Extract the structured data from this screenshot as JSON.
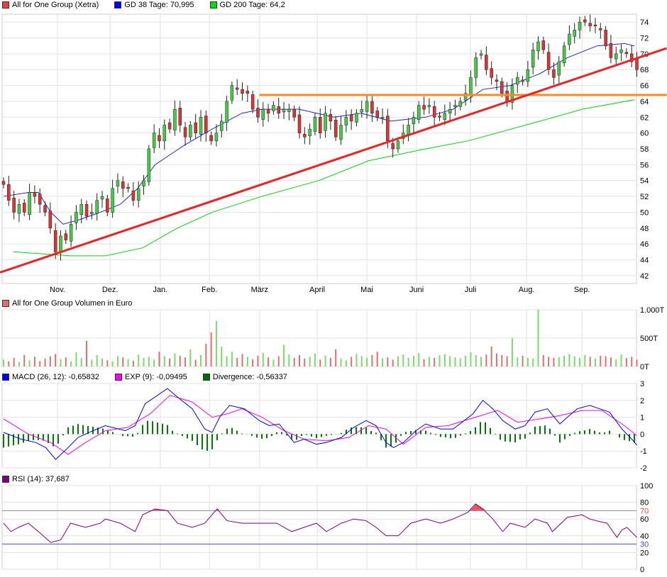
{
  "legend_main": [
    {
      "label": "All for One Group (Xetra)",
      "color": "#e84040"
    },
    {
      "label": "GD 38 Tage: 70,995",
      "color": "#0000ff"
    },
    {
      "label": "GD 200 Tage: 64,2",
      "color": "#00e000"
    }
  ],
  "legend_volume": [
    {
      "label": "All for One Group Volumen in Euro",
      "color": "#e07070"
    }
  ],
  "legend_macd": [
    {
      "label": "MACD (26, 12): -0,65832",
      "color": "#0000ff"
    },
    {
      "label": "EXP (9): -0,09495",
      "color": "#ff00ff"
    },
    {
      "label": "Divergence: -0,56337",
      "color": "#007000"
    }
  ],
  "legend_rsi": [
    {
      "label": "RSI (14): 37,687",
      "color": "#800080"
    }
  ],
  "chart_data": [
    {
      "type": "candlestick",
      "name": "price",
      "ylim": [
        41,
        75
      ],
      "yticks": [
        42,
        44,
        46,
        48,
        50,
        52,
        54,
        56,
        58,
        60,
        62,
        64,
        66,
        68,
        70,
        72,
        74
      ],
      "day_range": [
        0,
        255
      ],
      "months": [
        {
          "label": "Nov.",
          "day": 21.7
        },
        {
          "label": "Dez.",
          "day": 42.9
        },
        {
          "label": "Jan.",
          "day": 63.1
        },
        {
          "label": "Feb.",
          "day": 82.9
        },
        {
          "label": "März",
          "day": 103.1
        },
        {
          "label": "April",
          "day": 126.3
        },
        {
          "label": "Mai",
          "day": 146.3
        },
        {
          "label": "Juni",
          "day": 166.3
        },
        {
          "label": "Juli",
          "day": 188
        },
        {
          "label": "Aug.",
          "day": 210.6
        },
        {
          "label": "Sep.",
          "day": 232.9
        }
      ],
      "closes": [
        53.5,
        51.5,
        50,
        51,
        50,
        52.5,
        52,
        51,
        50,
        48,
        45,
        47,
        46.5,
        48.5,
        50,
        51,
        49.5,
        50,
        51.5,
        52,
        50,
        53,
        54,
        53,
        53,
        51.5,
        53,
        54,
        58,
        60,
        59,
        61,
        60.5,
        63,
        61,
        59.5,
        61,
        60,
        62,
        60,
        59,
        60,
        61.5,
        64,
        66,
        65.5,
        65,
        65,
        63,
        62,
        63,
        62.5,
        63.5,
        62.5,
        63,
        63,
        62,
        60,
        59.5,
        60.5,
        62,
        60,
        62.5,
        61.5,
        59.5,
        61,
        62,
        61.5,
        62.5,
        63,
        64,
        62.5,
        62,
        62,
        59,
        58,
        59,
        60,
        61,
        62,
        63.5,
        63,
        63.5,
        62,
        62,
        62.5,
        63,
        63.5,
        64,
        65,
        67,
        69.5,
        70,
        68,
        67,
        66.5,
        65,
        64,
        66,
        67,
        66.5,
        68,
        70.5,
        71.5,
        70.5,
        68,
        67,
        69,
        71,
        72.5,
        73,
        74,
        74,
        73.5,
        73.5,
        73,
        71,
        69.5,
        70,
        70.5,
        70,
        69,
        68
      ],
      "gd38": [
        [
          0,
          52
        ],
        [
          10,
          52.5
        ],
        [
          14,
          52.5
        ],
        [
          19,
          50
        ],
        [
          24,
          48.5
        ],
        [
          30,
          49
        ],
        [
          39,
          50
        ],
        [
          47,
          51
        ],
        [
          54,
          53
        ],
        [
          61,
          56
        ],
        [
          73,
          58.5
        ],
        [
          84,
          60.5
        ],
        [
          96,
          62.5
        ],
        [
          104,
          63
        ],
        [
          119,
          63
        ],
        [
          133,
          62
        ],
        [
          144,
          62.5
        ],
        [
          156,
          61.5
        ],
        [
          170,
          62
        ],
        [
          181,
          63
        ],
        [
          193,
          65.5
        ],
        [
          204,
          66
        ],
        [
          216,
          67.5
        ],
        [
          227,
          69.5
        ],
        [
          239,
          71
        ],
        [
          250,
          71.3
        ],
        [
          254,
          71
        ]
      ],
      "gd200": [
        [
          4,
          45
        ],
        [
          27,
          44.5
        ],
        [
          41,
          44.5
        ],
        [
          56,
          45.5
        ],
        [
          70,
          48
        ],
        [
          84,
          50
        ],
        [
          104,
          52
        ],
        [
          127,
          54
        ],
        [
          147,
          56.5
        ],
        [
          170,
          58
        ],
        [
          187,
          59
        ],
        [
          216,
          61.5
        ],
        [
          233,
          63
        ],
        [
          254,
          64.2
        ]
      ],
      "trendline": [
        [
          -1.4,
          42.4
        ],
        [
          267,
          70.7
        ]
      ],
      "resistance": [
        [
          103,
          64.8
        ],
        [
          267,
          64.8
        ]
      ]
    },
    {
      "type": "bar",
      "name": "volume",
      "ylim": [
        0,
        1000
      ],
      "yticks": [
        {
          "v": 0,
          "label": "0T"
        },
        {
          "v": 500,
          "label": "500T"
        },
        {
          "v": 1000,
          "label": "1.000T"
        }
      ],
      "values": [
        120,
        90,
        150,
        80,
        200,
        110,
        170,
        95,
        140,
        180,
        220,
        130,
        160,
        90,
        250,
        150,
        450,
        120,
        200,
        140,
        110,
        90,
        180,
        160,
        130,
        100,
        210,
        150,
        170,
        120,
        260,
        180,
        140,
        230,
        190,
        160,
        300,
        120,
        200,
        400,
        600,
        800,
        350,
        180,
        260,
        150,
        220,
        170,
        130,
        190,
        240,
        160,
        120,
        180,
        380,
        210,
        150,
        200,
        140,
        170,
        230,
        120,
        190,
        150,
        300,
        140,
        110,
        170,
        220,
        180,
        150,
        200,
        260,
        140,
        160,
        120,
        180,
        210,
        150,
        190,
        240,
        130,
        170,
        150,
        200,
        220,
        180,
        160,
        140,
        190,
        250,
        200,
        170,
        210,
        350,
        230,
        200,
        180,
        500,
        160,
        190,
        150,
        140,
        1000,
        200,
        170,
        150,
        160,
        190,
        220,
        180,
        150,
        200,
        170,
        140,
        190,
        180,
        160,
        130,
        210,
        150,
        170,
        120
      ]
    },
    {
      "type": "line",
      "name": "macd",
      "ylim": [
        -2,
        3
      ],
      "yticks": [
        -2,
        -1,
        0,
        1,
        2,
        3
      ],
      "macd": [
        [
          0,
          0.1
        ],
        [
          7,
          -0.3
        ],
        [
          13,
          -0.5
        ],
        [
          17,
          -0.8
        ],
        [
          21,
          -1.5
        ],
        [
          26,
          -0.8
        ],
        [
          30,
          -0.2
        ],
        [
          36,
          0.2
        ],
        [
          41,
          0.5
        ],
        [
          49,
          0.2
        ],
        [
          53,
          0.5
        ],
        [
          57,
          1.8
        ],
        [
          62,
          2.3
        ],
        [
          66,
          2.7
        ],
        [
          70,
          2.2
        ],
        [
          76,
          1.5
        ],
        [
          81,
          0.3
        ],
        [
          84,
          0.1
        ],
        [
          87,
          1.0
        ],
        [
          91,
          1.7
        ],
        [
          97,
          1.5
        ],
        [
          103,
          0.8
        ],
        [
          107,
          0.5
        ],
        [
          111,
          0.6
        ],
        [
          117,
          -0.5
        ],
        [
          121,
          -0.3
        ],
        [
          126,
          -0.6
        ],
        [
          130,
          -0.5
        ],
        [
          136,
          -0.2
        ],
        [
          141,
          0.4
        ],
        [
          146,
          0.8
        ],
        [
          150,
          0.5
        ],
        [
          154,
          -0.5
        ],
        [
          157,
          -0.8
        ],
        [
          161,
          -0.5
        ],
        [
          166,
          0.2
        ],
        [
          170,
          0.6
        ],
        [
          176,
          0.3
        ],
        [
          181,
          0.3
        ],
        [
          189,
          1.2
        ],
        [
          193,
          2.0
        ],
        [
          197,
          1.5
        ],
        [
          201,
          0.8
        ],
        [
          206,
          0.3
        ],
        [
          210,
          0.5
        ],
        [
          214,
          1.3
        ],
        [
          219,
          1.5
        ],
        [
          224,
          0.6
        ],
        [
          227,
          1.0
        ],
        [
          231,
          1.5
        ],
        [
          236,
          1.7
        ],
        [
          240,
          1.5
        ],
        [
          244,
          1.3
        ],
        [
          249,
          0.3
        ],
        [
          253,
          -0.3
        ],
        [
          255,
          -0.66
        ]
      ],
      "signal": [
        [
          0,
          0.9
        ],
        [
          10,
          0
        ],
        [
          19,
          -0.5
        ],
        [
          26,
          -1.2
        ],
        [
          33,
          -0.5
        ],
        [
          41,
          0.2
        ],
        [
          50,
          0.4
        ],
        [
          59,
          1.2
        ],
        [
          67,
          2.3
        ],
        [
          76,
          1.9
        ],
        [
          84,
          1.0
        ],
        [
          90,
          1.2
        ],
        [
          96,
          1.5
        ],
        [
          104,
          1.0
        ],
        [
          113,
          0.2
        ],
        [
          121,
          -0.3
        ],
        [
          130,
          -0.4
        ],
        [
          139,
          -0.2
        ],
        [
          147,
          0.5
        ],
        [
          154,
          0.3
        ],
        [
          161,
          -0.6
        ],
        [
          170,
          0.4
        ],
        [
          179,
          0.5
        ],
        [
          190,
          1.0
        ],
        [
          199,
          1.4
        ],
        [
          207,
          0.7
        ],
        [
          216,
          0.9
        ],
        [
          224,
          1.1
        ],
        [
          233,
          1.4
        ],
        [
          241,
          1.4
        ],
        [
          250,
          0.5
        ],
        [
          255,
          -0.09
        ]
      ]
    },
    {
      "type": "line",
      "name": "rsi",
      "ylim": [
        0,
        100
      ],
      "yticks": [
        0,
        20,
        40,
        60,
        80,
        100
      ],
      "overbought": 70,
      "oversold": 30,
      "values": [
        [
          0,
          55
        ],
        [
          3,
          45
        ],
        [
          6,
          50
        ],
        [
          10,
          55
        ],
        [
          14,
          45
        ],
        [
          19,
          32
        ],
        [
          23,
          35
        ],
        [
          27,
          55
        ],
        [
          33,
          50
        ],
        [
          39,
          55
        ],
        [
          41,
          60
        ],
        [
          47,
          55
        ],
        [
          53,
          45
        ],
        [
          56,
          65
        ],
        [
          61,
          72
        ],
        [
          66,
          70
        ],
        [
          70,
          55
        ],
        [
          76,
          50
        ],
        [
          81,
          55
        ],
        [
          86,
          72
        ],
        [
          90,
          58
        ],
        [
          96,
          55
        ],
        [
          104,
          55
        ],
        [
          110,
          55
        ],
        [
          116,
          45
        ],
        [
          121,
          50
        ],
        [
          126,
          55
        ],
        [
          130,
          45
        ],
        [
          136,
          55
        ],
        [
          141,
          60
        ],
        [
          146,
          58
        ],
        [
          150,
          50
        ],
        [
          154,
          40
        ],
        [
          159,
          40
        ],
        [
          164,
          55
        ],
        [
          170,
          60
        ],
        [
          176,
          55
        ],
        [
          181,
          60
        ],
        [
          187,
          68
        ],
        [
          190,
          78
        ],
        [
          193,
          72
        ],
        [
          197,
          60
        ],
        [
          201,
          45
        ],
        [
          204,
          55
        ],
        [
          210,
          50
        ],
        [
          214,
          60
        ],
        [
          219,
          55
        ],
        [
          221,
          45
        ],
        [
          227,
          62
        ],
        [
          233,
          65
        ],
        [
          236,
          60
        ],
        [
          240,
          57
        ],
        [
          243,
          55
        ],
        [
          247,
          38
        ],
        [
          249,
          47
        ],
        [
          251,
          50
        ],
        [
          255,
          38
        ]
      ]
    }
  ]
}
